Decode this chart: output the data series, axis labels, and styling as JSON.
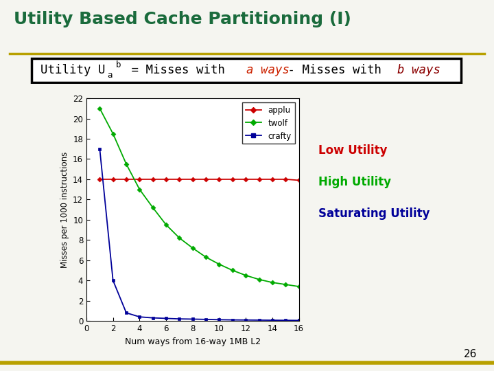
{
  "title": "Utility Based Cache Partitioning (I)",
  "title_color": "#1a6b3c",
  "ylabel": "Misses per 1000 instructions",
  "xlabel": "Num ways from 16-way 1MB L2",
  "xlim": [
    0,
    16
  ],
  "ylim": [
    0,
    22
  ],
  "yticks": [
    0,
    2,
    4,
    6,
    8,
    10,
    12,
    14,
    16,
    18,
    20,
    22
  ],
  "xticks": [
    0,
    2,
    4,
    6,
    8,
    10,
    12,
    14,
    16
  ],
  "ways": [
    1,
    2,
    3,
    4,
    5,
    6,
    7,
    8,
    9,
    10,
    11,
    12,
    13,
    14,
    15,
    16
  ],
  "applu": [
    14.0,
    14.0,
    14.0,
    14.0,
    14.0,
    14.0,
    14.0,
    14.0,
    14.0,
    14.0,
    14.0,
    14.0,
    14.0,
    14.0,
    14.0,
    13.9
  ],
  "twolf": [
    21.0,
    18.5,
    15.5,
    13.0,
    11.2,
    9.5,
    8.2,
    7.2,
    6.3,
    5.6,
    5.0,
    4.5,
    4.1,
    3.8,
    3.6,
    3.4
  ],
  "crafty": [
    17.0,
    4.0,
    0.8,
    0.4,
    0.3,
    0.25,
    0.2,
    0.18,
    0.15,
    0.12,
    0.1,
    0.09,
    0.08,
    0.07,
    0.06,
    0.05
  ],
  "applu_color": "#cc0000",
  "twolf_color": "#00aa00",
  "crafty_color": "#000099",
  "slide_bg": "#f5f5f0",
  "low_utility_label": "Low Utility",
  "high_utility_label": "High Utility",
  "saturating_utility_label": "Saturating Utility",
  "page_number": "26",
  "top_bar_color": "#1a6b3c",
  "bottom_bar_color": "#b8a000"
}
